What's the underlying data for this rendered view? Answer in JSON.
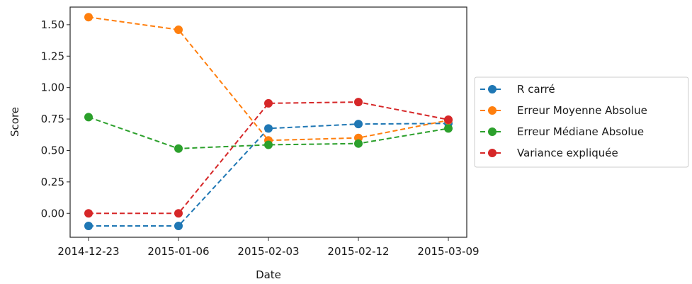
{
  "chart_data": {
    "type": "line",
    "title": "",
    "xlabel": "Date",
    "ylabel": "Score",
    "categories": [
      "2014-12-23",
      "2015-01-06",
      "2015-02-03",
      "2015-02-12",
      "2015-03-09"
    ],
    "ylim": [
      -0.19,
      1.64
    ],
    "yticks": [
      0.0,
      0.25,
      0.5,
      0.75,
      1.0,
      1.25,
      1.5
    ],
    "ytick_labels": [
      "0.00",
      "0.25",
      "0.50",
      "0.75",
      "1.00",
      "1.25",
      "1.50"
    ],
    "grid": false,
    "legend_position": "outside-right",
    "line_style": "dashed",
    "marker": "circle",
    "series": [
      {
        "name": "R carré",
        "color": "#1f77b4",
        "values": [
          -0.1,
          -0.1,
          0.675,
          0.71,
          0.715
        ]
      },
      {
        "name": "Erreur Moyenne Absolue",
        "color": "#ff7f0e",
        "values": [
          1.56,
          1.46,
          0.58,
          0.6,
          0.74
        ]
      },
      {
        "name": "Erreur Médiane Absolue",
        "color": "#2ca02c",
        "values": [
          0.765,
          0.515,
          0.545,
          0.555,
          0.675
        ]
      },
      {
        "name": "Variance expliquée",
        "color": "#d62728",
        "values": [
          0.0,
          0.0,
          0.875,
          0.885,
          0.745
        ]
      }
    ]
  }
}
